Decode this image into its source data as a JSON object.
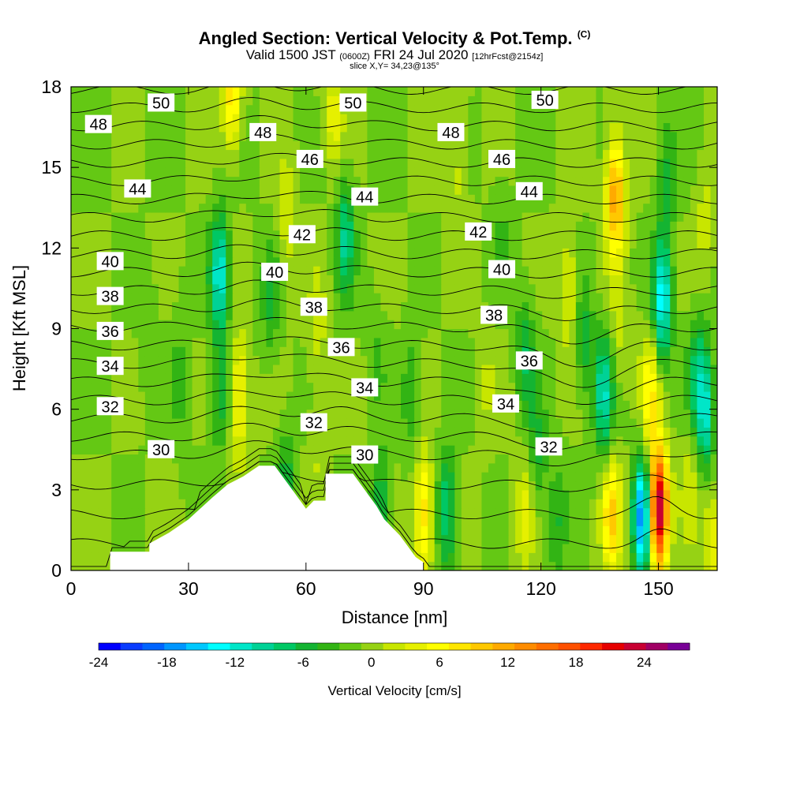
{
  "title": {
    "main": "Angled Section: Vertical Velocity & Pot.Temp.",
    "mark": "(C)",
    "valid_prefix": "Valid 1500 JST",
    "valid_utc": "(0600Z)",
    "valid_date": "FRI 24 Jul 2020",
    "valid_fcst": "[12hrFcst@2154z]",
    "slice": "slice X,Y= 34,23@135°"
  },
  "chart_data": {
    "type": "heatmap",
    "xlabel": "Distance [nm]",
    "ylabel": "Height [Kft MSL]",
    "xlim": [
      0,
      165
    ],
    "ylim": [
      0,
      18
    ],
    "x_ticks": [
      "0",
      "30",
      "60",
      "90",
      "120",
      "150"
    ],
    "y_ticks": [
      "0",
      "3",
      "6",
      "9",
      "12",
      "15",
      "18"
    ],
    "colorbar": {
      "label": "Vertical Velocity [cm/s]",
      "min": -24,
      "max": 28,
      "step": 2,
      "tick_labels": [
        "-24",
        "-18",
        "-12",
        "-6",
        "0",
        "6",
        "12",
        "18",
        "24"
      ],
      "colors": [
        "#0000ff",
        "#0a3cff",
        "#0064ff",
        "#0096ff",
        "#00c8ff",
        "#00ffff",
        "#00e6c8",
        "#00d296",
        "#00c864",
        "#14b432",
        "#32b414",
        "#64c814",
        "#96d214",
        "#c8e600",
        "#e6f000",
        "#ffff00",
        "#ffe600",
        "#ffc800",
        "#ffaa00",
        "#ff8c00",
        "#ff6e00",
        "#ff5000",
        "#ff2800",
        "#e60000",
        "#c80032",
        "#a00064",
        "#780096"
      ]
    },
    "terrain_profile": [
      [
        0,
        0
      ],
      [
        10,
        0
      ],
      [
        10,
        0.7
      ],
      [
        20,
        0.7
      ],
      [
        20,
        1
      ],
      [
        25,
        1.4
      ],
      [
        30,
        1.9
      ],
      [
        36,
        2.7
      ],
      [
        40,
        3.2
      ],
      [
        44,
        3.5
      ],
      [
        46,
        3.7
      ],
      [
        48,
        3.9
      ],
      [
        52,
        3.9
      ],
      [
        54,
        3.5
      ],
      [
        56,
        3.1
      ],
      [
        58,
        2.7
      ],
      [
        60,
        2.3
      ],
      [
        62,
        2.6
      ],
      [
        65,
        2.6
      ],
      [
        65,
        3.6
      ],
      [
        72,
        3.6
      ],
      [
        74,
        3.2
      ],
      [
        76,
        2.8
      ],
      [
        78,
        2.4
      ],
      [
        80,
        1.9
      ],
      [
        82,
        1.6
      ],
      [
        84,
        1.3
      ],
      [
        86,
        0.9
      ],
      [
        88,
        0.5
      ],
      [
        90,
        0.3
      ],
      [
        90,
        0
      ],
      [
        165,
        0
      ]
    ],
    "velocity_cells": [
      {
        "x": 20,
        "y": 9,
        "w": -2
      },
      {
        "x": 28,
        "y": 7,
        "w": -3
      },
      {
        "x": 38,
        "y": 11,
        "w": -12
      },
      {
        "x": 38,
        "y": 6.5,
        "w": -5
      },
      {
        "x": 41,
        "y": 17.8,
        "w": 9
      },
      {
        "x": 43,
        "y": 6.5,
        "w": 8
      },
      {
        "x": 51,
        "y": 10,
        "w": -4
      },
      {
        "x": 55,
        "y": 13,
        "w": 4
      },
      {
        "x": 55,
        "y": 3.3,
        "w": -5
      },
      {
        "x": 63,
        "y": 9,
        "w": 3
      },
      {
        "x": 63,
        "y": 5,
        "w": 2
      },
      {
        "x": 67,
        "y": 17,
        "w": 5
      },
      {
        "x": 70,
        "y": 12.5,
        "w": -8
      },
      {
        "x": 78,
        "y": 8,
        "w": -2
      },
      {
        "x": 79,
        "y": 2.2,
        "w": -7
      },
      {
        "x": 87,
        "y": 6.5,
        "w": -4
      },
      {
        "x": 90,
        "y": 2.2,
        "w": 10
      },
      {
        "x": 96,
        "y": 2.2,
        "w": -8
      },
      {
        "x": 99,
        "y": 15,
        "w": 3
      },
      {
        "x": 106,
        "y": 7,
        "w": 2
      },
      {
        "x": 110,
        "y": 13,
        "w": -2
      },
      {
        "x": 116,
        "y": 2.2,
        "w": 5
      },
      {
        "x": 116,
        "y": 8,
        "w": -6
      },
      {
        "x": 119,
        "y": 4.2,
        "w": -5
      },
      {
        "x": 124,
        "y": 1.8,
        "w": -4
      },
      {
        "x": 127,
        "y": 10.5,
        "w": 5
      },
      {
        "x": 131,
        "y": 8.5,
        "w": -5
      },
      {
        "x": 136,
        "y": 6.5,
        "w": -10
      },
      {
        "x": 138,
        "y": 2,
        "w": 10
      },
      {
        "x": 139,
        "y": 14,
        "w": 14
      },
      {
        "x": 140,
        "y": 9,
        "w": 3
      },
      {
        "x": 146,
        "y": 2,
        "w": -18
      },
      {
        "x": 148,
        "y": 6.5,
        "w": 8
      },
      {
        "x": 150,
        "y": 2.3,
        "w": 28
      },
      {
        "x": 151,
        "y": 10,
        "w": -13
      },
      {
        "x": 152,
        "y": 14.5,
        "w": -5
      },
      {
        "x": 158,
        "y": 3,
        "w": 3
      },
      {
        "x": 160,
        "y": 7.5,
        "w": -6
      },
      {
        "x": 162,
        "y": 5.8,
        "w": -10
      },
      {
        "x": 162,
        "y": 13,
        "w": 3
      },
      {
        "x": 164,
        "y": 1.2,
        "w": 6
      }
    ],
    "theta_levels": [
      22,
      24,
      26,
      28,
      30,
      31,
      32,
      33,
      34,
      35,
      36,
      37,
      38,
      39,
      40,
      41,
      42,
      43,
      44,
      45,
      46,
      47,
      48,
      49,
      50,
      51
    ],
    "contour_labels": [
      {
        "text": "50",
        "x": 23,
        "y": 17.4
      },
      {
        "text": "50",
        "x": 72,
        "y": 17.4
      },
      {
        "text": "50",
        "x": 121,
        "y": 17.5
      },
      {
        "text": "48",
        "x": 7,
        "y": 16.6
      },
      {
        "text": "48",
        "x": 49,
        "y": 16.3
      },
      {
        "text": "48",
        "x": 97,
        "y": 16.3
      },
      {
        "text": "46",
        "x": 61,
        "y": 15.3
      },
      {
        "text": "46",
        "x": 110,
        "y": 15.3
      },
      {
        "text": "44",
        "x": 17,
        "y": 14.2
      },
      {
        "text": "44",
        "x": 75,
        "y": 13.9
      },
      {
        "text": "44",
        "x": 117,
        "y": 14.1
      },
      {
        "text": "42",
        "x": 59,
        "y": 12.5
      },
      {
        "text": "42",
        "x": 104,
        "y": 12.6
      },
      {
        "text": "40",
        "x": 10,
        "y": 11.5
      },
      {
        "text": "40",
        "x": 52,
        "y": 11.1
      },
      {
        "text": "40",
        "x": 110,
        "y": 11.2
      },
      {
        "text": "38",
        "x": 10,
        "y": 10.2
      },
      {
        "text": "38",
        "x": 62,
        "y": 9.8
      },
      {
        "text": "38",
        "x": 108,
        "y": 9.5
      },
      {
        "text": "36",
        "x": 10,
        "y": 8.9
      },
      {
        "text": "36",
        "x": 69,
        "y": 8.3
      },
      {
        "text": "36",
        "x": 117,
        "y": 7.8
      },
      {
        "text": "34",
        "x": 10,
        "y": 7.6
      },
      {
        "text": "34",
        "x": 75,
        "y": 6.8
      },
      {
        "text": "34",
        "x": 111,
        "y": 6.2
      },
      {
        "text": "32",
        "x": 10,
        "y": 6.1
      },
      {
        "text": "32",
        "x": 62,
        "y": 5.5
      },
      {
        "text": "32",
        "x": 122,
        "y": 4.6
      },
      {
        "text": "30",
        "x": 23,
        "y": 4.5
      },
      {
        "text": "30",
        "x": 75,
        "y": 4.3
      }
    ]
  }
}
